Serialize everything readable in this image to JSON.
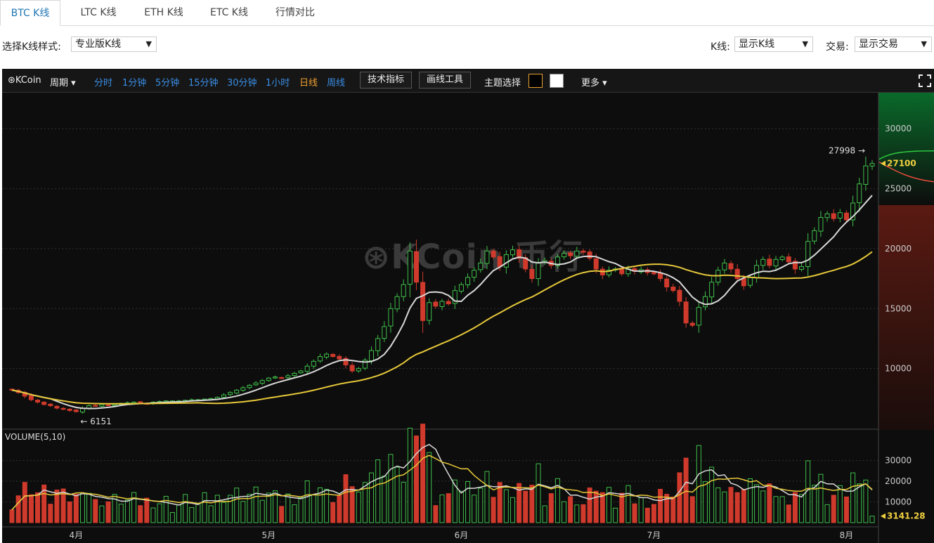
{
  "tabs": [
    {
      "label": "BTC K线",
      "active": true
    },
    {
      "label": "LTC K线",
      "active": false
    },
    {
      "label": "ETH K线",
      "active": false
    },
    {
      "label": "ETC K线",
      "active": false
    },
    {
      "label": "行情对比",
      "active": false
    }
  ],
  "controls": {
    "style_label": "选择K线样式:",
    "style_value": "专业版K线",
    "kline_label": "K线:",
    "kline_value": "显示K线",
    "trade_label": "交易:",
    "trade_value": "显示交易",
    "arrow": "▼"
  },
  "toolbar": {
    "brand": "⊛KCoin",
    "period_label": "周期 ▾",
    "periods": [
      {
        "label": "分时",
        "state": "normal"
      },
      {
        "label": "1分钟",
        "state": "normal"
      },
      {
        "label": "5分钟",
        "state": "normal"
      },
      {
        "label": "15分钟",
        "state": "normal"
      },
      {
        "label": "30分钟",
        "state": "normal"
      },
      {
        "label": "1小时",
        "state": "normal"
      },
      {
        "label": "日线",
        "state": "active"
      },
      {
        "label": "周线",
        "state": "normal"
      }
    ],
    "indicators_button": "技术指标",
    "drawing_button": "画线工具",
    "theme_label": "主题选择",
    "more_label": "更多 ▾",
    "fullscreen_icon": "fullscreen-icon"
  },
  "watermark": "⊛KCoin 币行",
  "colors": {
    "up": "#3fbf4a",
    "down": "#d03a2c",
    "ma_short": "#d8d8d8",
    "ma_long": "#e6c83a",
    "active_tab": "#1f77b4",
    "blue_link": "#3a8ee6",
    "active_period": "#f0a030"
  },
  "chart_data": {
    "type": "candlestick",
    "y_ticks": [
      10000,
      15000,
      20000,
      25000,
      30000
    ],
    "y_tick_labels": [
      "10000",
      "15000",
      "20000",
      "25000",
      "30000"
    ],
    "ylim": [
      5000,
      33000
    ],
    "x_labels": [
      "4月",
      "5月",
      "6月",
      "7月",
      "8月"
    ],
    "x_label_positions_index": [
      10,
      40,
      70,
      100,
      130
    ],
    "max_label": "27998 →",
    "min_label": "← 6151",
    "current_price_label": "27100",
    "volume_title": "VOLUME(5,10)",
    "volume_ticks": [
      10000,
      20000,
      30000
    ],
    "volume_tick_labels": [
      "10000",
      "20000",
      "30000"
    ],
    "volume_ylim": [
      0,
      38000
    ],
    "volume_current_label": "3141.28",
    "closes": [
      8200,
      8000,
      7700,
      7400,
      7200,
      7000,
      6900,
      6700,
      6600,
      6500,
      6400,
      6700,
      6900,
      6900,
      7000,
      6950,
      7000,
      7100,
      7150,
      7200,
      7150,
      7100,
      7200,
      7250,
      7300,
      7300,
      7300,
      7350,
      7400,
      7400,
      7450,
      7500,
      7600,
      7800,
      8000,
      8200,
      8400,
      8600,
      8800,
      9000,
      9200,
      9300,
      9250,
      9400,
      9600,
      9800,
      10200,
      10600,
      11000,
      11200,
      11000,
      10800,
      10300,
      9800,
      10000,
      10700,
      11500,
      12500,
      13500,
      15000,
      16000,
      17000,
      19800,
      17200,
      14000,
      15500,
      15200,
      15600,
      15400,
      16500,
      17000,
      17600,
      18200,
      18800,
      19800,
      19300,
      18500,
      19500,
      19900,
      19200,
      18300,
      17500,
      18800,
      19000,
      18600,
      19300,
      19600,
      19400,
      19800,
      19700,
      19200,
      18300,
      17800,
      18200,
      18300,
      17900,
      18300,
      18100,
      18250,
      18000,
      17900,
      17500,
      16800,
      16500,
      15600,
      13800,
      13600,
      15100,
      16000,
      17200,
      18200,
      18800,
      18300,
      17500,
      16900,
      17600,
      18600,
      19100,
      18600,
      19100,
      19300,
      18900,
      18300,
      18500,
      20600,
      21500,
      22600,
      22900,
      22500,
      23000,
      22400,
      23800,
      25400,
      26900,
      27100
    ]
  }
}
